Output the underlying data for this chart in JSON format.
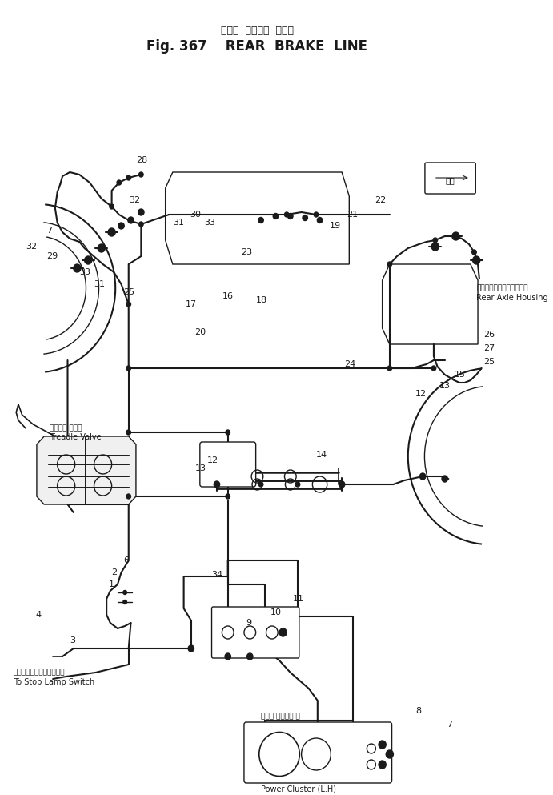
{
  "fig_width": 6.91,
  "fig_height": 9.93,
  "dpi": 100,
  "bg": "#ffffff",
  "lc": "#1a1a1a",
  "title_jp": "リヤー  ブレーキ  ライン",
  "title_en": "REAR  BRAKE  LINE",
  "fig_num": "Fig. 367"
}
